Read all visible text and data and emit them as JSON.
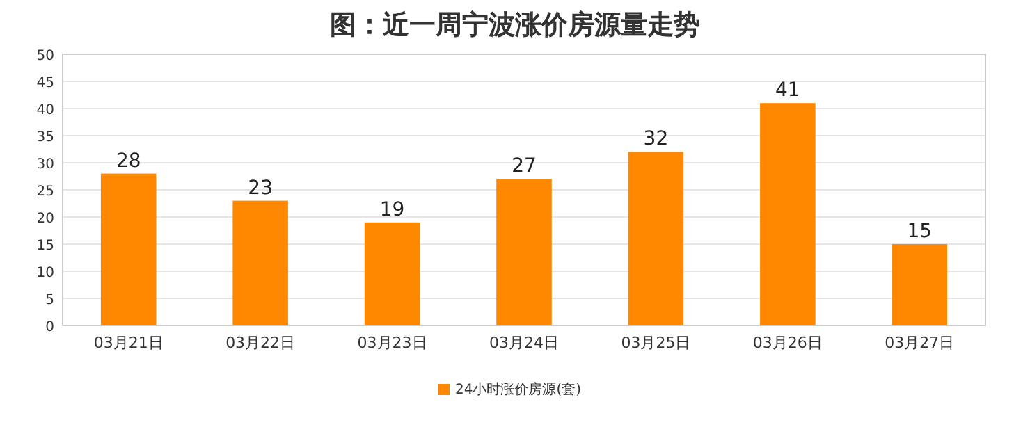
{
  "chart_data": {
    "type": "bar",
    "title": "图：近一周宁波涨价房源量走势",
    "categories": [
      "03月21日",
      "03月22日",
      "03月23日",
      "03月24日",
      "03月25日",
      "03月26日",
      "03月27日"
    ],
    "series": [
      {
        "name": "24小时涨价房源(套)",
        "color": "#ff8800",
        "values": [
          28,
          23,
          19,
          27,
          32,
          41,
          15
        ]
      }
    ],
    "ylim": [
      0,
      50
    ],
    "yticks": [
      0,
      5,
      10,
      15,
      20,
      25,
      30,
      35,
      40,
      45,
      50
    ],
    "grid": "y",
    "legend": "bottom",
    "data_labels": true
  }
}
